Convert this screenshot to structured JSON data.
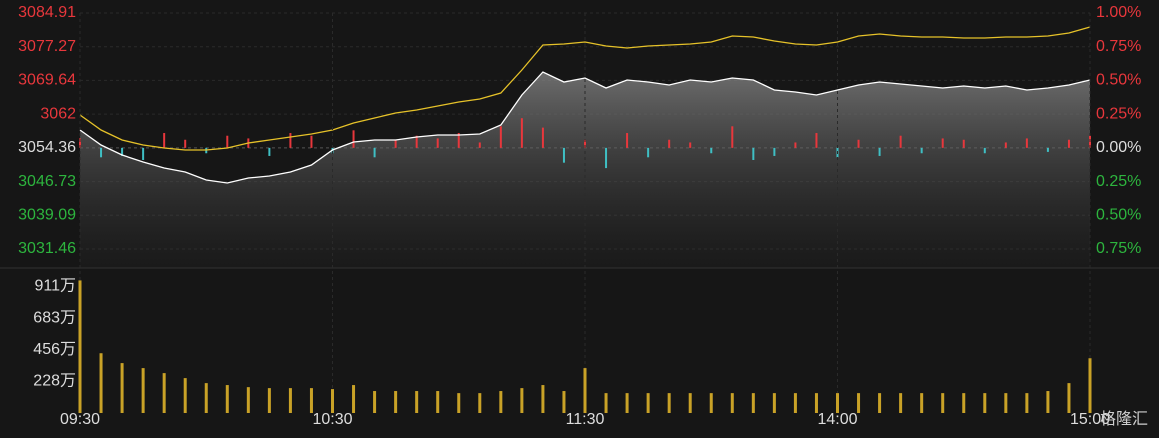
{
  "chart_data": [
    {
      "type": "line",
      "x": [
        0,
        5,
        10,
        15,
        20,
        25,
        30,
        35,
        40,
        45,
        50,
        55,
        60,
        65,
        70,
        75,
        80,
        85,
        90,
        95,
        100,
        105,
        110,
        115,
        120,
        125,
        130,
        135,
        140,
        145,
        150,
        155,
        160,
        165,
        170,
        175,
        180,
        185,
        190,
        195,
        200,
        205,
        210,
        215,
        220,
        225,
        230,
        235,
        240
      ],
      "xlim": [
        0,
        240
      ],
      "ylim": [
        3031.46,
        3084.91
      ],
      "yticks": [
        3084.91,
        3077.27,
        3069.64,
        3062.0,
        3054.36,
        3046.73,
        3039.09,
        3031.46
      ],
      "y2lim": [
        -0.75,
        1.0
      ],
      "y2ticks": [
        {
          "value": 1.0,
          "label": "1.00%"
        },
        {
          "value": 0.75,
          "label": "0.75%"
        },
        {
          "value": 0.5,
          "label": "0.50%"
        },
        {
          "value": 0.25,
          "label": "0.25%"
        },
        {
          "value": 0,
          "label": "0.00%"
        },
        {
          "value": -0.25,
          "label": "0.25%"
        },
        {
          "value": -0.5,
          "label": "0.50%"
        },
        {
          "value": -0.75,
          "label": "0.75%"
        }
      ],
      "up_color": "#e8373c",
      "flat_color": "#dddddd",
      "down_color": "#2db53e",
      "series": [
        {
          "color": "#ffffff",
          "values": [
            3058.41,
            3055.01,
            3052.75,
            3051.16,
            3049.81,
            3048.9,
            3047.09,
            3046.41,
            3047.54,
            3047.99,
            3048.9,
            3050.48,
            3053.88,
            3055.69,
            3056.15,
            3056.15,
            3056.83,
            3057.28,
            3057.28,
            3057.51,
            3059.54,
            3066.34,
            3071.55,
            3069.28,
            3070.19,
            3067.92,
            3069.74,
            3069.28,
            3068.6,
            3069.74,
            3069.28,
            3070.19,
            3069.74,
            3067.47,
            3067.02,
            3066.34,
            3067.47,
            3068.6,
            3069.28,
            3068.83,
            3068.38,
            3067.92,
            3068.38,
            3067.92,
            3068.38,
            3067.47,
            3067.92,
            3068.6,
            3069.74
          ]
        },
        {
          "color": "#e6c229",
          "values": [
            3061.81,
            3058.41,
            3056.15,
            3055.01,
            3054.33,
            3053.88,
            3053.88,
            3054.33,
            3055.47,
            3056.15,
            3056.83,
            3057.51,
            3058.41,
            3060.0,
            3061.13,
            3062.26,
            3062.94,
            3063.85,
            3064.75,
            3065.43,
            3066.79,
            3072.0,
            3077.66,
            3077.89,
            3078.34,
            3077.44,
            3076.98,
            3077.44,
            3077.66,
            3077.89,
            3078.34,
            3079.7,
            3079.47,
            3078.57,
            3077.89,
            3077.66,
            3078.34,
            3079.7,
            3080.15,
            3079.7,
            3079.47,
            3079.47,
            3079.25,
            3079.25,
            3079.47,
            3079.47,
            3079.7,
            3080.38,
            3081.74
          ]
        }
      ],
      "deviation": {
        "axis": "y2",
        "up_color": "#e8373c",
        "down_color": "#3fbfc4",
        "values": [
          0.07,
          -0.07,
          -0.06,
          -0.09,
          0.11,
          0.06,
          -0.04,
          0.09,
          0.07,
          -0.06,
          0.11,
          0.09,
          -0.04,
          0.13,
          -0.07,
          0.06,
          0.09,
          0.07,
          0.11,
          0.04,
          0.16,
          0.22,
          0.15,
          -0.11,
          0.06,
          -0.15,
          0.11,
          -0.07,
          0.06,
          0.04,
          -0.04,
          0.16,
          -0.09,
          -0.06,
          0.04,
          0.11,
          -0.07,
          0.06,
          -0.06,
          0.09,
          -0.04,
          0.07,
          0.06,
          -0.04,
          0.04,
          0.07,
          -0.03,
          0.06,
          0.09
        ]
      }
    },
    {
      "type": "bar",
      "x": [
        0,
        5,
        10,
        15,
        20,
        25,
        30,
        35,
        40,
        45,
        50,
        55,
        60,
        65,
        70,
        75,
        80,
        85,
        90,
        95,
        100,
        105,
        110,
        115,
        120,
        125,
        130,
        135,
        140,
        145,
        150,
        155,
        160,
        165,
        170,
        175,
        180,
        185,
        190,
        195,
        200,
        205,
        210,
        215,
        220,
        225,
        230,
        235,
        240
      ],
      "xlim": [
        0,
        240
      ],
      "xticks": [
        {
          "value": 0,
          "label": "09:30"
        },
        {
          "value": 60,
          "label": "10:30"
        },
        {
          "value": 120,
          "label": "11:30"
        },
        {
          "value": 180,
          "label": "14:00"
        },
        {
          "value": 240,
          "label": "15:00"
        }
      ],
      "ylim": [
        0,
        1000
      ],
      "yticks": [
        {
          "value": 911,
          "label": "911万"
        },
        {
          "value": 683,
          "label": "683万"
        },
        {
          "value": 456,
          "label": "456万"
        },
        {
          "value": 228,
          "label": "228万"
        }
      ],
      "color": "#c9a227",
      "values": [
        954,
        430,
        359,
        323,
        287,
        251,
        215,
        201,
        186,
        179,
        179,
        179,
        172,
        201,
        158,
        158,
        158,
        158,
        143,
        143,
        158,
        179,
        201,
        158,
        323,
        143,
        143,
        143,
        143,
        143,
        143,
        143,
        143,
        143,
        143,
        143,
        143,
        143,
        143,
        143,
        143,
        143,
        143,
        143,
        143,
        143,
        158,
        215,
        394
      ]
    }
  ],
  "watermark": "格隆汇"
}
